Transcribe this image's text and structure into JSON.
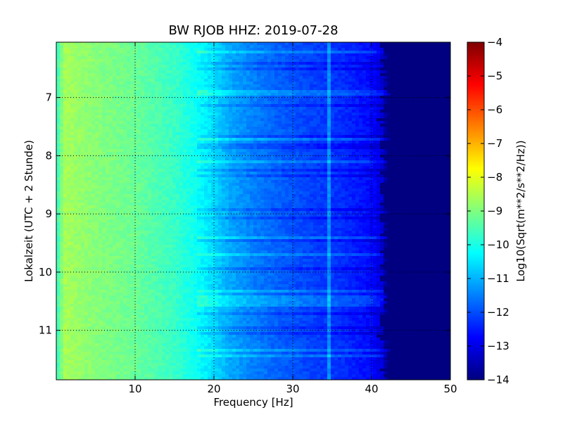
{
  "chart_data": {
    "type": "heatmap",
    "title": "BW RJOB HHZ: 2019-07-28",
    "xlabel": "Frequency [Hz]",
    "ylabel": "Lokalzeit (UTC + 2 Stunde)",
    "xlim": [
      0,
      50
    ],
    "ylim": [
      6.05,
      11.85
    ],
    "y_inverted": true,
    "x_ticks": [
      10,
      20,
      30,
      40,
      50
    ],
    "x_tick_labels": [
      "10",
      "20",
      "30",
      "40",
      "50"
    ],
    "y_ticks": [
      7,
      8,
      9,
      10,
      11
    ],
    "y_tick_labels": [
      "7",
      "8",
      "9",
      "10",
      "11"
    ],
    "grid": true,
    "grid_style": "dotted",
    "colormap": "jet",
    "colorbar": {
      "label": "Log10(Sqrt(m**2/s**2/Hz))",
      "range": [
        -14,
        -4
      ],
      "ticks": [
        -4,
        -5,
        -6,
        -7,
        -8,
        -9,
        -10,
        -11,
        -12,
        -13,
        -14
      ],
      "tick_labels": [
        "−4",
        "−5",
        "−6",
        "−7",
        "−8",
        "−9",
        "−10",
        "−11",
        "−12",
        "−13",
        "−14"
      ]
    },
    "spectral_profile": {
      "frequency_hz": [
        0,
        1,
        3,
        6,
        10,
        15,
        18,
        20,
        22,
        25,
        28,
        32,
        36,
        40,
        41.5,
        42,
        50
      ],
      "log10_amplitude": [
        -9.8,
        -8.6,
        -8.8,
        -9.0,
        -9.2,
        -9.7,
        -10.2,
        -10.6,
        -11.1,
        -11.5,
        -11.8,
        -12.1,
        -12.3,
        -12.7,
        -13.2,
        -14.0,
        -14.0
      ]
    },
    "narrowband_line_hz": 34.5
  }
}
